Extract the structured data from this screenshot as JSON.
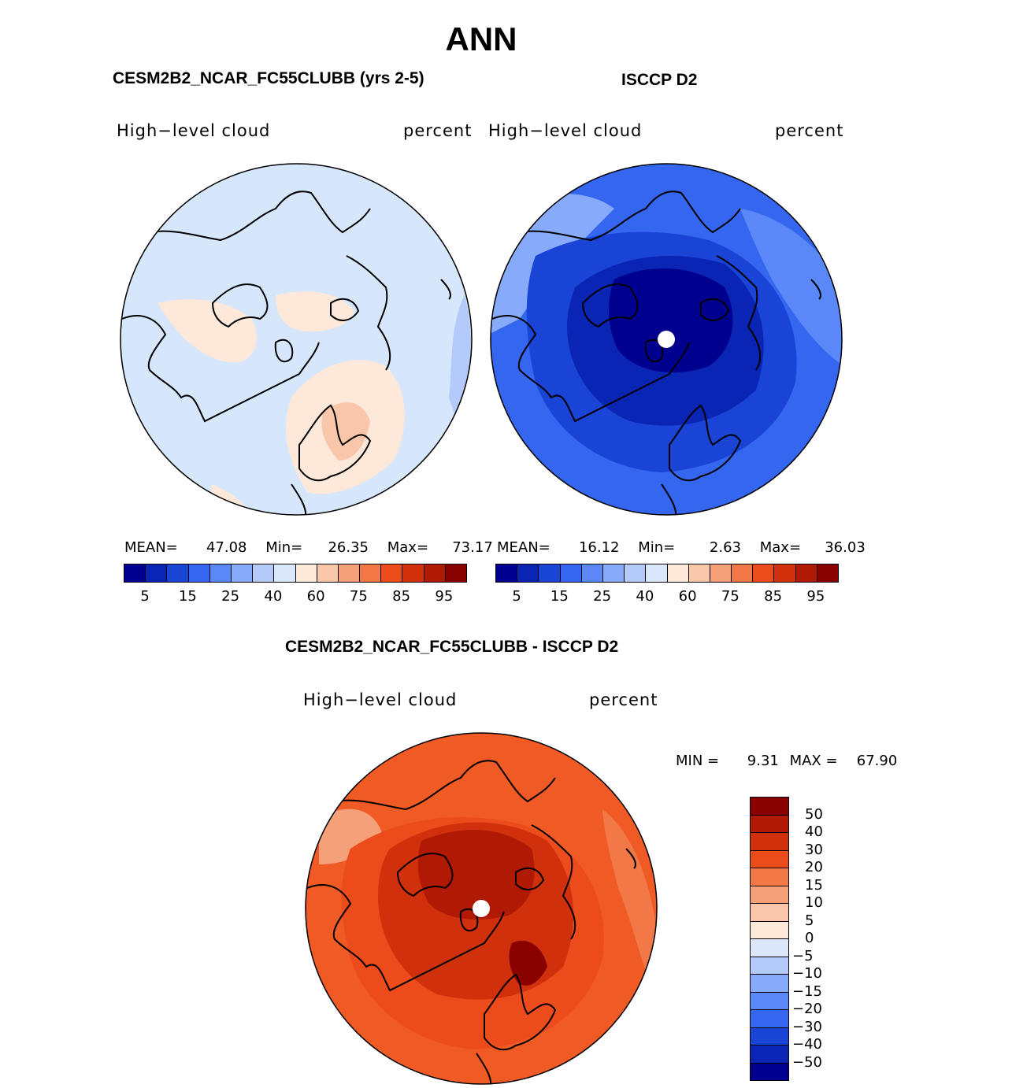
{
  "title": "ANN",
  "panels": {
    "model": {
      "title": "CESM2B2_NCAR_FC55CLUBB (yrs 2-5)",
      "var_label": "High−level cloud",
      "units": "percent",
      "mean_label": "MEAN=",
      "mean": "47.08",
      "min_label": "Min=",
      "min": "26.35",
      "max_label": "Max=",
      "max": "73.17"
    },
    "obs": {
      "title": "ISCCP D2",
      "var_label": "High−level cloud",
      "units": "percent",
      "mean_label": "MEAN=",
      "mean": "16.12",
      "min_label": "Min=",
      "min": "2.63",
      "max_label": "Max=",
      "max": "36.03"
    },
    "diff": {
      "title": "CESM2B2_NCAR_FC55CLUBB - ISCCP D2",
      "var_label": "High−level cloud",
      "units": "percent",
      "min_label": "MIN =",
      "min": "9.31",
      "max_label": "MAX =",
      "max": "67.90"
    }
  },
  "colorbar_abs": {
    "ticks": [
      "5",
      "15",
      "25",
      "40",
      "60",
      "75",
      "85",
      "95"
    ],
    "colors": [
      "#00008f",
      "#0a24b4",
      "#1a44d6",
      "#3466f0",
      "#5a88f8",
      "#88aafa",
      "#b4cafb",
      "#dbe8fc",
      "#fde8da",
      "#fac6aa",
      "#f6a07a",
      "#f27848",
      "#ec4c1c",
      "#d0300c",
      "#b01a04",
      "#8a0200"
    ]
  },
  "colorbar_diff": {
    "ticks": [
      "50",
      "40",
      "30",
      "20",
      "15",
      "10",
      "5",
      "0",
      "−5",
      "−10",
      "−15",
      "−20",
      "−30",
      "−40",
      "−50"
    ],
    "colors": [
      "#8a0200",
      "#b01a04",
      "#d0300c",
      "#ec4c1c",
      "#f27848",
      "#f6a07a",
      "#fac6aa",
      "#fde8da",
      "#dbe8fc",
      "#b4cafb",
      "#88aafa",
      "#5a88f8",
      "#3466f0",
      "#1a44d6",
      "#0a24b4",
      "#00008f"
    ]
  },
  "map_fields": {
    "model_background": "#d6e6fb",
    "obs_background": "#2a5ae8",
    "diff_background": "#f05a24"
  }
}
